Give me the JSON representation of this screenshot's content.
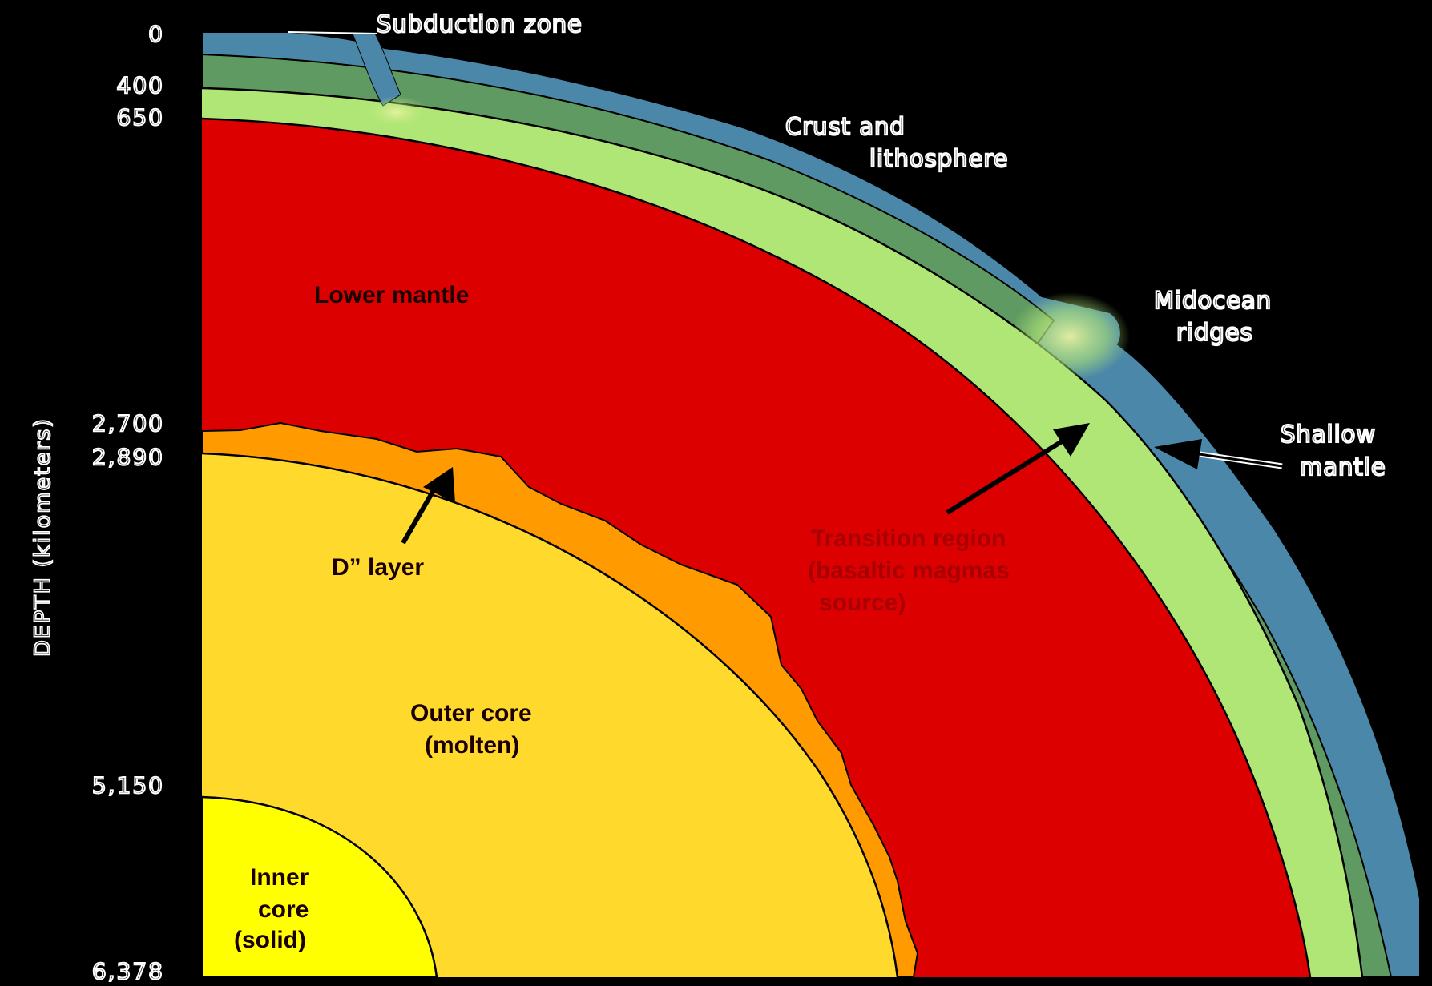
{
  "colors": {
    "background": "#000000",
    "crust": "#4b87a8",
    "lithosphere": "#5f9a62",
    "shallow_mantle": "#b0e676",
    "lower_mantle": "#dd0000",
    "d_layer": "#ff9a00",
    "outer_core": "#ffd92b",
    "inner_core": "#ffff00"
  },
  "axis": {
    "title": "DEPTH (kilometers)",
    "ticks": [
      {
        "label": "0",
        "value": 0
      },
      {
        "label": "400",
        "value": 400
      },
      {
        "label": "650",
        "value": 650
      },
      {
        "label": "2,700",
        "value": 2700
      },
      {
        "label": "2,890",
        "value": 2890
      },
      {
        "label": "5,150",
        "value": 5150
      },
      {
        "label": "6,378",
        "value": 6378
      }
    ]
  },
  "labels": {
    "subduction_zone": "Subduction zone",
    "crust_line1": "Crust and",
    "crust_line2": "lithosphere",
    "midocean_line1": "Midocean",
    "midocean_line2": "ridges",
    "shallow_line1": "Shallow",
    "shallow_line2": "mantle",
    "lower_mantle": "Lower mantle",
    "transition_line1": "Transition region",
    "transition_line2": "(basaltic magmas",
    "transition_line3": "source)",
    "d_layer": "D” layer",
    "outer_core_line1": "Outer core",
    "outer_core_line2": "(molten)",
    "inner_core_line1": "Inner",
    "inner_core_line2": "core",
    "inner_core_line3": "(solid)"
  }
}
